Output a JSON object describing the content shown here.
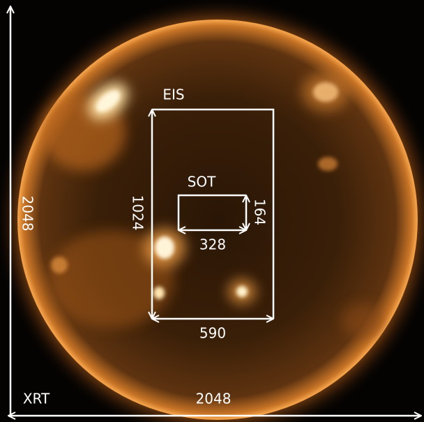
{
  "annotations": {
    "xrt": {
      "label": "XRT",
      "width": "2048",
      "height": "2048"
    },
    "eis": {
      "label": "EIS",
      "width": "590",
      "height": "1024"
    },
    "sot": {
      "label": "SOT",
      "width": "328",
      "height": "164"
    }
  }
}
